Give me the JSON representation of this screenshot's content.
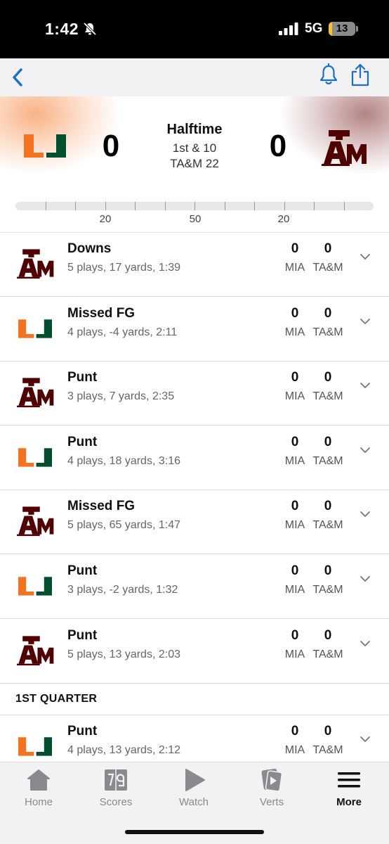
{
  "status_bar": {
    "time": "1:42",
    "network": "5G",
    "battery": "13",
    "battery_level": 0.13
  },
  "scoreboard": {
    "home_team": "MIA",
    "away_team": "TA&M",
    "home_score": "0",
    "away_score": "0",
    "status": "Halftime",
    "down_distance": "1st & 10",
    "ball_spot": "TA&M 22",
    "yard_labels": [
      "20",
      "50",
      "20"
    ]
  },
  "drives": [
    {
      "team": "TA&M",
      "result": "Downs",
      "summary": "5 plays, 17 yards, 1:39",
      "home_score": "0",
      "away_score": "0",
      "home_abbr": "MIA",
      "away_abbr": "TA&M"
    },
    {
      "team": "MIA",
      "result": "Missed FG",
      "summary": "4 plays, -4 yards, 2:11",
      "home_score": "0",
      "away_score": "0",
      "home_abbr": "MIA",
      "away_abbr": "TA&M"
    },
    {
      "team": "TA&M",
      "result": "Punt",
      "summary": "3 plays, 7 yards, 2:35",
      "home_score": "0",
      "away_score": "0",
      "home_abbr": "MIA",
      "away_abbr": "TA&M"
    },
    {
      "team": "MIA",
      "result": "Punt",
      "summary": "4 plays, 18 yards, 3:16",
      "home_score": "0",
      "away_score": "0",
      "home_abbr": "MIA",
      "away_abbr": "TA&M"
    },
    {
      "team": "TA&M",
      "result": "Missed FG",
      "summary": "5 plays, 65 yards, 1:47",
      "home_score": "0",
      "away_score": "0",
      "home_abbr": "MIA",
      "away_abbr": "TA&M"
    },
    {
      "team": "MIA",
      "result": "Punt",
      "summary": "3 plays, -2 yards, 1:32",
      "home_score": "0",
      "away_score": "0",
      "home_abbr": "MIA",
      "away_abbr": "TA&M"
    },
    {
      "team": "TA&M",
      "result": "Punt",
      "summary": "5 plays, 13 yards, 2:03",
      "home_score": "0",
      "away_score": "0",
      "home_abbr": "MIA",
      "away_abbr": "TA&M"
    }
  ],
  "section": {
    "title": "1ST QUARTER"
  },
  "quarter1_drives": [
    {
      "team": "MIA",
      "result": "Punt",
      "summary": "4 plays, 13 yards, 2:12",
      "home_score": "0",
      "away_score": "0",
      "home_abbr": "MIA",
      "away_abbr": "TA&M"
    }
  ],
  "tabs": [
    {
      "label": "Home",
      "icon": "home-icon",
      "active": false
    },
    {
      "label": "Scores",
      "icon": "scores-icon",
      "active": false
    },
    {
      "label": "Watch",
      "icon": "play-icon",
      "active": false
    },
    {
      "label": "Verts",
      "icon": "verts-icon",
      "active": false
    },
    {
      "label": "More",
      "icon": "menu-icon",
      "active": true
    }
  ],
  "colors": {
    "miami_orange": "#f47321",
    "miami_green": "#005030",
    "tamu_maroon": "#500000",
    "accent_blue": "#1a6fc9"
  }
}
